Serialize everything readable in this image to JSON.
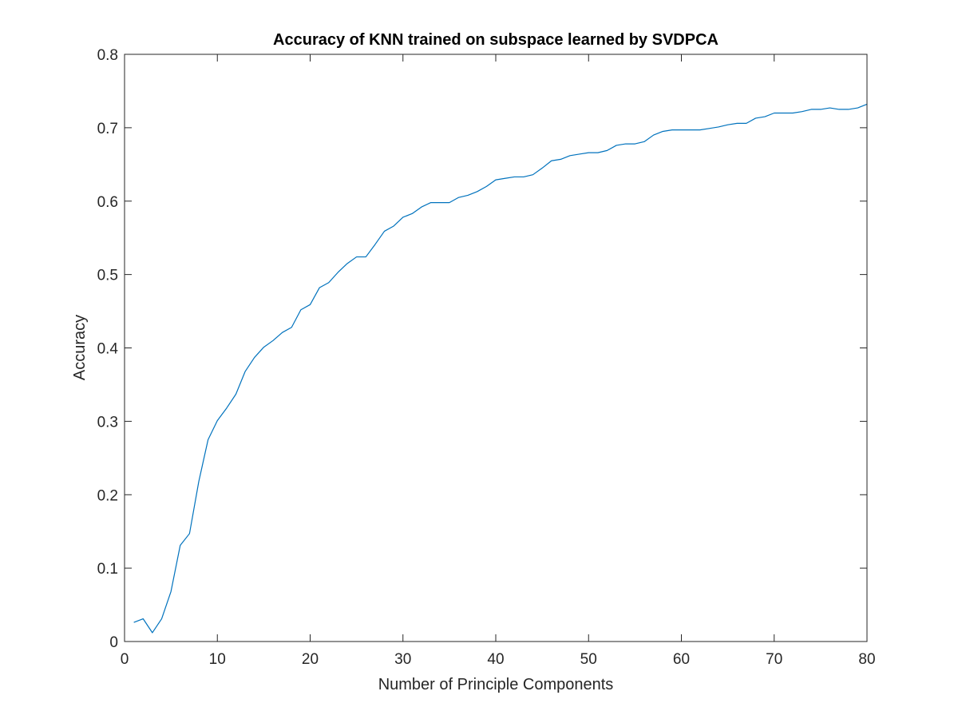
{
  "chart_data": {
    "type": "line",
    "title": "Accuracy of KNN trained on subspace learned by SVDPCA",
    "xlabel": "Number of Principle Components",
    "ylabel": "Accuracy",
    "xlim": [
      0,
      80
    ],
    "ylim": [
      0,
      0.8
    ],
    "xticks": [
      0,
      10,
      20,
      30,
      40,
      50,
      60,
      70,
      80
    ],
    "xtick_labels": [
      "0",
      "10",
      "20",
      "30",
      "40",
      "50",
      "60",
      "70",
      "80"
    ],
    "yticks": [
      0,
      0.1,
      0.2,
      0.3,
      0.4,
      0.5,
      0.6,
      0.7,
      0.8
    ],
    "ytick_labels": [
      "0",
      "0.1",
      "0.2",
      "0.3",
      "0.4",
      "0.5",
      "0.6",
      "0.7",
      "0.8"
    ],
    "grid": false,
    "box": true,
    "line_color": "#0072BD",
    "series": [
      {
        "x": [
          1,
          2,
          3,
          4,
          5,
          6,
          7,
          8,
          9,
          10,
          11,
          12,
          13,
          14,
          15,
          16,
          17,
          18,
          19,
          20,
          21,
          22,
          23,
          24,
          25,
          26,
          27,
          28,
          29,
          30,
          31,
          32,
          33,
          34,
          35,
          36,
          37,
          38,
          39,
          40,
          41,
          42,
          43,
          44,
          45,
          46,
          47,
          48,
          49,
          50,
          51,
          52,
          53,
          54,
          55,
          56,
          57,
          58,
          59,
          60,
          61,
          62,
          63,
          64,
          65,
          66,
          67,
          68,
          69,
          70,
          71,
          72,
          73,
          74,
          75,
          76,
          77,
          78,
          79,
          80
        ],
        "values": [
          0.026,
          0.031,
          0.012,
          0.031,
          0.068,
          0.131,
          0.147,
          0.218,
          0.275,
          0.301,
          0.318,
          0.337,
          0.368,
          0.387,
          0.401,
          0.41,
          0.421,
          0.428,
          0.452,
          0.459,
          0.482,
          0.489,
          0.503,
          0.515,
          0.524,
          0.524,
          0.541,
          0.559,
          0.566,
          0.578,
          0.583,
          0.592,
          0.598,
          0.598,
          0.598,
          0.605,
          0.608,
          0.613,
          0.62,
          0.629,
          0.631,
          0.633,
          0.633,
          0.636,
          0.645,
          0.655,
          0.657,
          0.662,
          0.664,
          0.666,
          0.666,
          0.669,
          0.676,
          0.678,
          0.678,
          0.681,
          0.69,
          0.695,
          0.697,
          0.697,
          0.697,
          0.697,
          0.699,
          0.701,
          0.704,
          0.706,
          0.706,
          0.713,
          0.715,
          0.72,
          0.72,
          0.72,
          0.722,
          0.725,
          0.725,
          0.727,
          0.725,
          0.725,
          0.727,
          0.732
        ]
      }
    ]
  }
}
